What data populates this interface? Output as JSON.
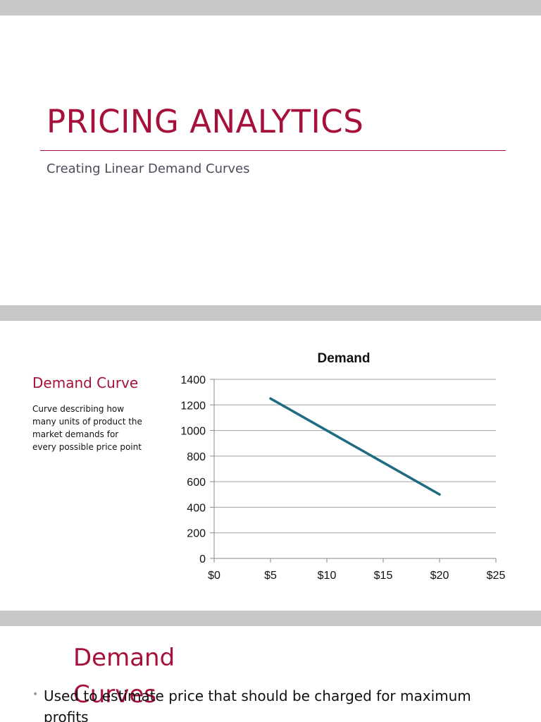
{
  "slide1": {
    "title": "PRICING ANALYTICS",
    "subtitle": "Creating Linear Demand Curves"
  },
  "slide2": {
    "section_title": "Demand Curve",
    "section_body": "Curve describing how\nmany units of product the\n market demands for\nevery  possible price point"
  },
  "slide3": {
    "title": "Demand Curves",
    "bullet": "Used to estimate price that should be charged for maximum profits"
  },
  "colors": {
    "accent": "#a5113a",
    "series": "#1f6b82",
    "band": "#c8c8c8"
  },
  "chart_data": {
    "type": "line",
    "title": "Demand",
    "xlabel": "",
    "ylabel": "",
    "x_ticks": [
      "$0",
      "$5",
      "$10",
      "$15",
      "$20",
      "$25"
    ],
    "y_ticks": [
      "0",
      "200",
      "400",
      "600",
      "800",
      "1000",
      "1200",
      "1400"
    ],
    "xlim": [
      0,
      25
    ],
    "ylim": [
      0,
      1400
    ],
    "grid": "horizontal",
    "legend": "none",
    "series": [
      {
        "x": [
          5,
          10,
          15,
          20
        ],
        "y": [
          1250,
          1000,
          750,
          500
        ]
      }
    ]
  }
}
